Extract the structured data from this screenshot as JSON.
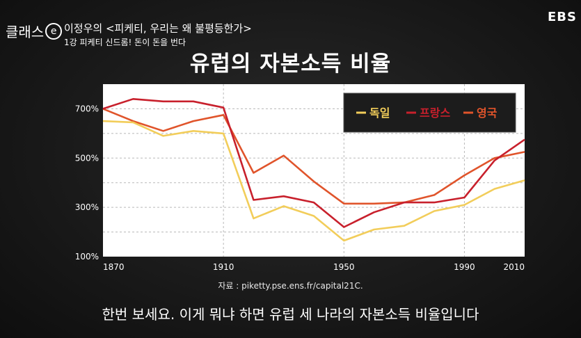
{
  "header": {
    "brand": "클래스",
    "brand_mark": "e",
    "series_title": "이정우의 <피케티, 우리는 왜 불평등한가>",
    "lecture_title": "1강 피케티 신드롬! 돈이 돈을 번다",
    "broadcaster": "EBS"
  },
  "source_note": "자료 : piketty.pse.ens.fr/capital21C.",
  "subtitle": "한번 보세요. 이게 뭐냐 하면 유럽 세 나라의 자본소득 비율입니다",
  "chart_data": {
    "type": "line",
    "title": "유럽의 자본소득 비율",
    "x_ticks": [
      1870,
      1910,
      1950,
      1990,
      2010
    ],
    "y_ticks": [
      "100%",
      "300%",
      "500%",
      "700%"
    ],
    "y_tick_values": [
      100,
      300,
      500,
      700
    ],
    "xlim": [
      1870,
      2010
    ],
    "ylim": [
      100,
      800
    ],
    "grid": true,
    "legend_position": "top-right",
    "series": [
      {
        "name": "독일",
        "color": "#f2cd5a",
        "x": [
          1870,
          1880,
          1890,
          1900,
          1910,
          1920,
          1930,
          1940,
          1950,
          1960,
          1970,
          1980,
          1990,
          2000,
          2010
        ],
        "values": [
          650,
          645,
          590,
          610,
          600,
          255,
          305,
          265,
          165,
          210,
          225,
          285,
          310,
          375,
          410
        ]
      },
      {
        "name": "프랑스",
        "color": "#c8202c",
        "x": [
          1870,
          1880,
          1890,
          1900,
          1910,
          1920,
          1930,
          1940,
          1950,
          1960,
          1970,
          1980,
          1990,
          2000,
          2010
        ],
        "values": [
          700,
          740,
          730,
          730,
          705,
          330,
          345,
          320,
          220,
          280,
          320,
          320,
          340,
          490,
          575
        ]
      },
      {
        "name": "영국",
        "color": "#e0542b",
        "x": [
          1870,
          1880,
          1890,
          1900,
          1910,
          1920,
          1930,
          1940,
          1950,
          1960,
          1970,
          1980,
          1990,
          2000,
          2010
        ],
        "values": [
          700,
          650,
          610,
          650,
          675,
          440,
          510,
          405,
          315,
          315,
          320,
          350,
          430,
          500,
          525
        ]
      }
    ]
  }
}
